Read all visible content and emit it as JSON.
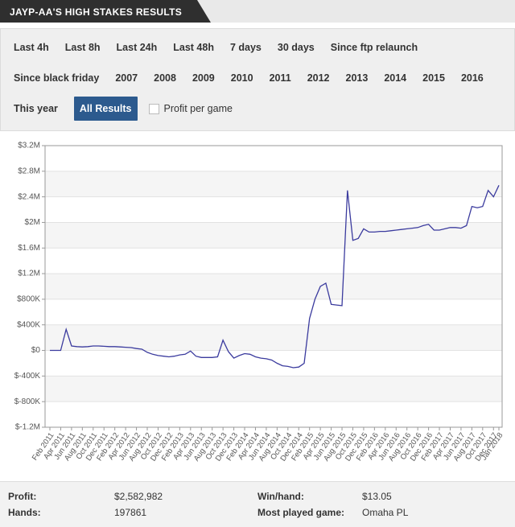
{
  "header": {
    "title": "JAYP-AA'S HIGH STAKES RESULTS"
  },
  "filters": {
    "rows": [
      [
        "Last 4h",
        "Last 8h",
        "Last 24h",
        "Last 48h",
        "7 days",
        "30 days",
        "Since ftp relaunch"
      ],
      [
        "Since black friday",
        "2007",
        "2008",
        "2009",
        "2010",
        "2011",
        "2012",
        "2013",
        "2014",
        "2015",
        "2016"
      ],
      [
        "This year",
        "All Results"
      ]
    ],
    "active": "All Results",
    "checkbox": "Profit per game"
  },
  "chart_data": {
    "type": "line",
    "color": "#3b3b9e",
    "categories": [
      "Feb 2011",
      null,
      "Apr 2011",
      null,
      "Jun 2011",
      null,
      "Aug 2011",
      null,
      "Oct 2011",
      null,
      "Dec 2011",
      null,
      "Feb 2012",
      null,
      "Apr 2012",
      null,
      "Jun 2012",
      null,
      "Aug 2012",
      null,
      "Oct 2012",
      null,
      "Dec 2012",
      null,
      "Feb 2013",
      null,
      "Apr 2013",
      null,
      "Jun 2013",
      null,
      "Aug 2013",
      null,
      "Oct 2013",
      null,
      "Dec 2013",
      null,
      "Feb 2014",
      null,
      "Apr 2014",
      null,
      "Jun 2014",
      null,
      "Aug 2014",
      null,
      "Oct 2014",
      null,
      "Dec 2014",
      null,
      "Feb 2015",
      null,
      "Apr 2015",
      null,
      "Jun 2015",
      null,
      "Aug 2015",
      null,
      "Oct 2015",
      null,
      "Dec 2015",
      null,
      "Feb 2016",
      null,
      "Apr 2016",
      null,
      "Jun 2016",
      null,
      "Aug 2016",
      null,
      "Oct 2016",
      null,
      "Dec 2016",
      null,
      "Feb 2017",
      null,
      "Apr 2017",
      null,
      "Jun 2017",
      null,
      "Aug 2017",
      null,
      "Oct 2017",
      null,
      "Dec 2017",
      "Jan 2018"
    ],
    "values": [
      0,
      0,
      0,
      330000,
      70000,
      60000,
      55000,
      60000,
      70000,
      70000,
      65000,
      60000,
      60000,
      55000,
      50000,
      45000,
      30000,
      20000,
      -30000,
      -60000,
      -80000,
      -90000,
      -100000,
      -90000,
      -70000,
      -60000,
      -10000,
      -90000,
      -110000,
      -110000,
      -110000,
      -100000,
      160000,
      -20000,
      -120000,
      -80000,
      -50000,
      -60000,
      -100000,
      -120000,
      -130000,
      -150000,
      -200000,
      -240000,
      -250000,
      -270000,
      -260000,
      -200000,
      500000,
      800000,
      1000000,
      1050000,
      720000,
      710000,
      700000,
      2500000,
      1720000,
      1750000,
      1900000,
      1850000,
      1850000,
      1860000,
      1860000,
      1870000,
      1880000,
      1890000,
      1900000,
      1910000,
      1920000,
      1950000,
      1970000,
      1880000,
      1880000,
      1900000,
      1920000,
      1920000,
      1910000,
      1950000,
      2250000,
      2230000,
      2250000,
      2500000,
      2400000,
      2580000
    ],
    "ylim": [
      -1200000,
      3200000
    ],
    "yticks": [
      {
        "value": -1200000,
        "label": "$-1.2M"
      },
      {
        "value": -800000,
        "label": "$-800K"
      },
      {
        "value": -400000,
        "label": "$-400K"
      },
      {
        "value": 0,
        "label": "$0"
      },
      {
        "value": 400000,
        "label": "$400K"
      },
      {
        "value": 800000,
        "label": "$800K"
      },
      {
        "value": 1200000,
        "label": "$1.2M"
      },
      {
        "value": 1600000,
        "label": "$1.6M"
      },
      {
        "value": 2000000,
        "label": "$2M"
      },
      {
        "value": 2400000,
        "label": "$2.4M"
      },
      {
        "value": 2800000,
        "label": "$2.8M"
      },
      {
        "value": 3200000,
        "label": "$3.2M"
      }
    ],
    "grid": true
  },
  "stats": [
    {
      "label": "Profit:",
      "value": "$2,582,982"
    },
    {
      "label": "Win/hand:",
      "value": "$13.05"
    },
    {
      "label": "Hands:",
      "value": "197861"
    },
    {
      "label": "Most played game:",
      "value": "Omaha PL"
    }
  ]
}
